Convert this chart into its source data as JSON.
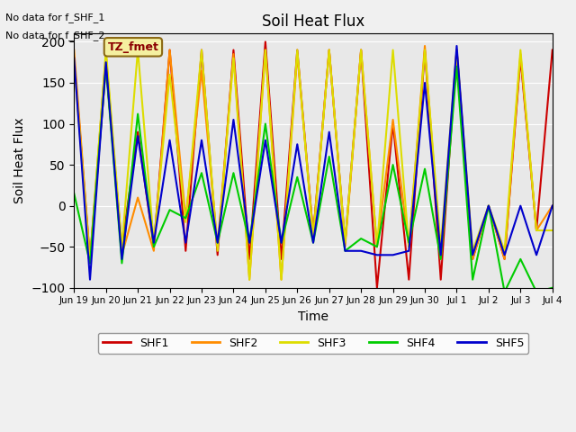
{
  "title": "Soil Heat Flux",
  "ylabel": "Soil Heat Flux",
  "xlabel": "Time",
  "ylim": [
    -100,
    210
  ],
  "yticks": [
    -100,
    -50,
    0,
    50,
    100,
    150,
    200
  ],
  "bg_color": "#e8e8e8",
  "fig_color": "#f0f0f0",
  "annotations": [
    "No data for f_SHF_1",
    "No data for f_SHF_2"
  ],
  "tz_label": "TZ_fmet",
  "series": {
    "SHF1": {
      "color": "#cc0000",
      "x": [
        0.0,
        0.5,
        1.0,
        1.5,
        2.0,
        2.5,
        3.0,
        3.5,
        4.0,
        4.5,
        5.0,
        5.5,
        6.0,
        6.5,
        7.0,
        7.5,
        8.0,
        8.5,
        9.0,
        9.5,
        10.0,
        10.5,
        11.0,
        11.5,
        12.0,
        12.5,
        13.0,
        13.5,
        14.0,
        14.5,
        15.0
      ],
      "y": [
        180,
        -65,
        170,
        -50,
        90,
        -50,
        190,
        -55,
        190,
        -60,
        190,
        -65,
        200,
        -65,
        190,
        -35,
        190,
        -45,
        190,
        -100,
        100,
        -90,
        190,
        -90,
        190,
        -65,
        0,
        -65,
        180,
        -30,
        190
      ]
    },
    "SHF2": {
      "color": "#ff8c00",
      "x": [
        0.0,
        0.5,
        1.0,
        1.5,
        2.0,
        2.5,
        3.0,
        3.5,
        4.0,
        4.5,
        5.0,
        5.5,
        6.0,
        6.5,
        7.0,
        7.5,
        8.0,
        8.5,
        9.0,
        9.5,
        10.0,
        10.5,
        11.0,
        11.5,
        12.0,
        12.5,
        13.0,
        13.5,
        14.0,
        14.5,
        15.0
      ],
      "y": [
        190,
        -65,
        185,
        -60,
        10,
        -55,
        190,
        -15,
        165,
        -50,
        185,
        -90,
        190,
        -90,
        185,
        -35,
        190,
        -50,
        190,
        -50,
        105,
        -50,
        195,
        -65,
        190,
        -65,
        0,
        -65,
        185,
        -30,
        0
      ]
    },
    "SHF3": {
      "color": "#dddd00",
      "x": [
        0.0,
        0.5,
        1.0,
        1.5,
        2.0,
        2.5,
        3.0,
        3.5,
        4.0,
        4.5,
        5.0,
        5.5,
        6.0,
        6.5,
        7.0,
        7.5,
        8.0,
        8.5,
        9.0,
        9.5,
        10.0,
        10.5,
        11.0,
        11.5,
        12.0,
        12.5,
        13.0,
        13.5,
        14.0,
        14.5,
        15.0
      ],
      "y": [
        175,
        -70,
        190,
        -50,
        190,
        -45,
        160,
        -20,
        190,
        -55,
        180,
        -90,
        190,
        -90,
        190,
        -40,
        190,
        -45,
        190,
        -50,
        190,
        -50,
        190,
        -50,
        190,
        -55,
        0,
        -55,
        190,
        -30,
        -30
      ]
    },
    "SHF4": {
      "color": "#00cc00",
      "x": [
        0.0,
        0.5,
        1.0,
        1.5,
        2.0,
        2.5,
        3.0,
        3.5,
        4.0,
        4.5,
        5.0,
        5.5,
        6.0,
        6.5,
        7.0,
        7.5,
        8.0,
        8.5,
        9.0,
        9.5,
        10.0,
        10.5,
        11.0,
        11.5,
        12.0,
        12.5,
        13.0,
        13.5,
        14.0,
        14.5,
        15.0
      ],
      "y": [
        15,
        -70,
        170,
        -70,
        112,
        -50,
        -5,
        -15,
        40,
        -45,
        40,
        -45,
        100,
        -45,
        35,
        -45,
        60,
        -55,
        -40,
        -50,
        50,
        -45,
        45,
        -65,
        170,
        -90,
        0,
        -105,
        -65,
        -105,
        -100
      ]
    },
    "SHF5": {
      "color": "#0000cc",
      "x": [
        0.0,
        0.5,
        1.0,
        1.5,
        2.0,
        2.5,
        3.0,
        3.5,
        4.0,
        4.5,
        5.0,
        5.5,
        6.0,
        6.5,
        7.0,
        7.5,
        8.0,
        8.5,
        9.0,
        9.5,
        10.0,
        10.5,
        11.0,
        11.5,
        12.0,
        12.5,
        13.0,
        13.5,
        14.0,
        14.5,
        15.0
      ],
      "y": [
        180,
        -90,
        175,
        -65,
        85,
        -45,
        80,
        -45,
        80,
        -45,
        105,
        -45,
        80,
        -45,
        75,
        -45,
        90,
        -55,
        -55,
        -60,
        -60,
        -55,
        150,
        -60,
        195,
        -60,
        0,
        -60,
        0,
        -60,
        0
      ]
    }
  },
  "xtick_positions": [
    0,
    1,
    2,
    3,
    4,
    5,
    6,
    7,
    8,
    9,
    10,
    11,
    12,
    13,
    14,
    15
  ],
  "xtick_labels": [
    "Jun 19",
    "Jun 20",
    "Jun 21",
    "Jun 22",
    "Jun 23",
    "Jun 24",
    "Jun 25",
    "Jun 26",
    "Jun 27",
    "Jun 28",
    "Jun 29",
    "Jun 30",
    "Jul 1",
    "Jul 2",
    "Jul 3",
    "Jul 4"
  ],
  "legend_entries": [
    "SHF1",
    "SHF2",
    "SHF3",
    "SHF4",
    "SHF5"
  ],
  "legend_colors": [
    "#cc0000",
    "#ff8c00",
    "#dddd00",
    "#00cc00",
    "#0000cc"
  ]
}
